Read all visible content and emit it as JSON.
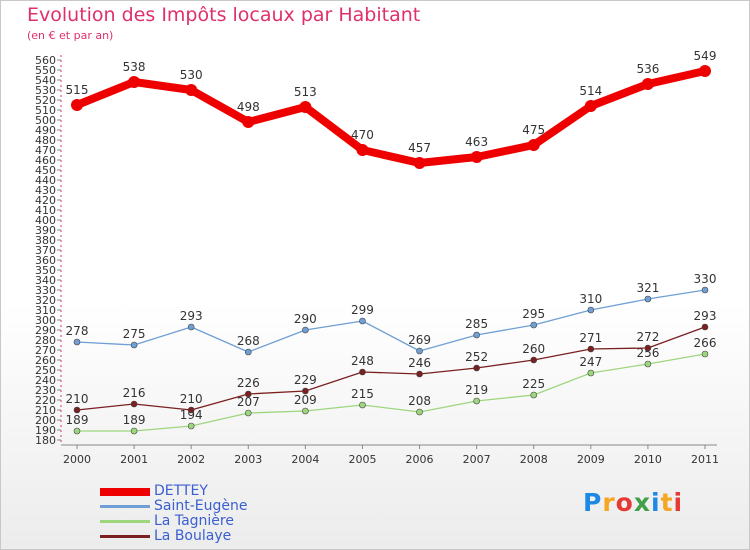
{
  "title": "Evolution des Impôts locaux par Habitant",
  "subtitle": "(en € et par an)",
  "logo": {
    "letters": [
      "P",
      "r",
      "o",
      "x",
      "i",
      "t",
      "i"
    ],
    "colors": [
      "#1e88e5",
      "#f5a623",
      "#e53935",
      "#43a047",
      "#1e88e5",
      "#f5a623",
      "#e53935"
    ]
  },
  "chart_data": {
    "type": "line",
    "title": "Evolution des Impôts locaux par Habitant",
    "subtitle": "(en € et par an)",
    "categories": [
      "2000",
      "2001",
      "2002",
      "2003",
      "2004",
      "2005",
      "2006",
      "2007",
      "2008",
      "2009",
      "2010",
      "2011"
    ],
    "ylim": [
      180,
      560
    ],
    "yticks": [
      180,
      190,
      200,
      210,
      220,
      230,
      240,
      250,
      260,
      270,
      280,
      290,
      300,
      310,
      320,
      330,
      340,
      350,
      360,
      370,
      380,
      390,
      400,
      410,
      420,
      430,
      440,
      450,
      460,
      470,
      480,
      490,
      500,
      510,
      520,
      530,
      540,
      550,
      560
    ],
    "grid": false,
    "legend_position": "bottom-left",
    "series": [
      {
        "name": "DETTEY",
        "color": "#ee0000",
        "values": [
          515,
          538,
          530,
          498,
          513,
          470,
          457,
          463,
          475,
          514,
          536,
          549
        ]
      },
      {
        "name": "Saint-Eugène",
        "color": "#6f9fd4",
        "values": [
          278,
          275,
          293,
          268,
          290,
          299,
          269,
          285,
          295,
          310,
          321,
          330
        ]
      },
      {
        "name": "La Tagnière",
        "color": "#9ed67e",
        "values": [
          189,
          189,
          194,
          207,
          209,
          215,
          208,
          219,
          225,
          247,
          256,
          266
        ]
      },
      {
        "name": "La Boulaye",
        "color": "#7a2020",
        "values": [
          210,
          216,
          210,
          226,
          229,
          248,
          246,
          252,
          260,
          271,
          272,
          293
        ]
      }
    ]
  }
}
